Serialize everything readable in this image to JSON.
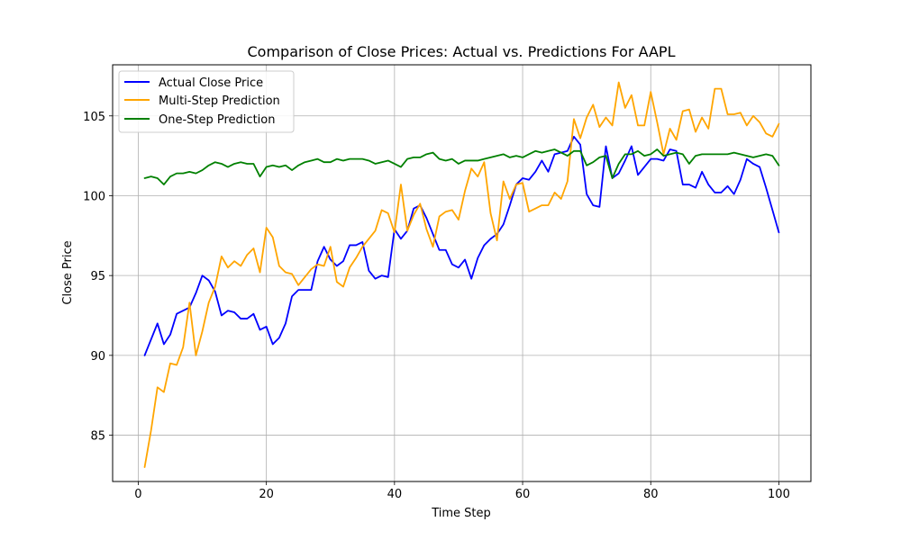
{
  "chart_data": {
    "type": "line",
    "title": "Comparison of Close Prices: Actual vs. Predictions For AAPL",
    "xlabel": "Time Step",
    "ylabel": "Close Price",
    "xlim": [
      -4,
      105
    ],
    "ylim": [
      82.1,
      108.2
    ],
    "xticks": [
      0,
      20,
      40,
      60,
      80,
      100
    ],
    "yticks": [
      85,
      90,
      95,
      100,
      105
    ],
    "grid": true,
    "legend_position": "top-left",
    "x": [
      1,
      2,
      3,
      4,
      5,
      6,
      7,
      8,
      9,
      10,
      11,
      12,
      13,
      14,
      15,
      16,
      17,
      18,
      19,
      20,
      21,
      22,
      23,
      24,
      25,
      26,
      27,
      28,
      29,
      30,
      31,
      32,
      33,
      34,
      35,
      36,
      37,
      38,
      39,
      40,
      41,
      42,
      43,
      44,
      45,
      46,
      47,
      48,
      49,
      50,
      51,
      52,
      53,
      54,
      55,
      56,
      57,
      58,
      59,
      60,
      61,
      62,
      63,
      64,
      65,
      66,
      67,
      68,
      69,
      70,
      71,
      72,
      73,
      74,
      75,
      76,
      77,
      78,
      79,
      80,
      81,
      82,
      83,
      84,
      85,
      86,
      87,
      88,
      89,
      90,
      91,
      92,
      93,
      94,
      95,
      96,
      97,
      98,
      99,
      100
    ],
    "series": [
      {
        "name": "Actual Close Price",
        "color": "#0000ff",
        "values": [
          90.0,
          91.0,
          92.0,
          90.7,
          91.3,
          92.6,
          92.8,
          93.0,
          93.9,
          95.0,
          94.7,
          94.0,
          92.5,
          92.8,
          92.7,
          92.3,
          92.3,
          92.6,
          91.6,
          91.8,
          90.7,
          91.1,
          92.0,
          93.7,
          94.1,
          94.1,
          94.1,
          95.9,
          96.8,
          96.0,
          95.6,
          95.9,
          96.9,
          96.9,
          97.1,
          95.3,
          94.8,
          95.0,
          94.9,
          97.9,
          97.3,
          97.8,
          99.2,
          99.4,
          98.6,
          97.6,
          96.6,
          96.6,
          95.7,
          95.5,
          96.0,
          94.8,
          96.1,
          96.9,
          97.3,
          97.6,
          98.2,
          99.4,
          100.7,
          101.1,
          101.0,
          101.5,
          102.2,
          101.5,
          102.6,
          102.7,
          102.8,
          103.7,
          103.2,
          100.1,
          99.4,
          99.3,
          103.1,
          101.1,
          101.4,
          102.2,
          103.1,
          101.3,
          101.8,
          102.3,
          102.3,
          102.2,
          102.9,
          102.8,
          100.7,
          100.7,
          100.5,
          101.5,
          100.7,
          100.2,
          100.2,
          100.6,
          100.1,
          101.0,
          102.3,
          102.0,
          101.8,
          100.5,
          99.1,
          97.7
        ]
      },
      {
        "name": "Multi-Step Prediction",
        "color": "#ffa500",
        "values": [
          83.0,
          85.3,
          88.0,
          87.7,
          89.5,
          89.4,
          90.5,
          93.3,
          90.0,
          91.5,
          93.3,
          94.3,
          96.2,
          95.5,
          95.9,
          95.6,
          96.3,
          96.7,
          95.2,
          98.0,
          97.4,
          95.6,
          95.2,
          95.1,
          94.4,
          94.9,
          95.4,
          95.7,
          95.6,
          96.8,
          94.6,
          94.3,
          95.5,
          96.1,
          96.8,
          97.3,
          97.8,
          99.1,
          98.9,
          97.7,
          100.7,
          97.8,
          98.8,
          99.5,
          97.9,
          96.8,
          98.7,
          99.0,
          99.1,
          98.5,
          100.3,
          101.7,
          101.2,
          102.1,
          98.9,
          97.2,
          100.9,
          99.8,
          100.7,
          100.8,
          99.0,
          99.2,
          99.4,
          99.4,
          100.2,
          99.8,
          100.9,
          104.8,
          103.6,
          104.9,
          105.7,
          104.3,
          104.9,
          104.4,
          107.1,
          105.5,
          106.3,
          104.4,
          104.4,
          106.5,
          104.6,
          102.6,
          104.2,
          103.5,
          105.3,
          105.4,
          104.0,
          104.9,
          104.2,
          106.7,
          106.7,
          105.1,
          105.1,
          105.2,
          104.4,
          105.0,
          104.6,
          103.9,
          103.7,
          104.5
        ]
      },
      {
        "name": "One-Step Prediction",
        "color": "#008000",
        "values": [
          101.1,
          101.2,
          101.1,
          100.7,
          101.2,
          101.4,
          101.4,
          101.5,
          101.4,
          101.6,
          101.9,
          102.1,
          102.0,
          101.8,
          102.0,
          102.1,
          102.0,
          102.0,
          101.2,
          101.8,
          101.9,
          101.8,
          101.9,
          101.6,
          101.9,
          102.1,
          102.2,
          102.3,
          102.1,
          102.1,
          102.3,
          102.2,
          102.3,
          102.3,
          102.3,
          102.2,
          102.0,
          102.1,
          102.2,
          102.0,
          101.8,
          102.3,
          102.4,
          102.4,
          102.6,
          102.7,
          102.3,
          102.2,
          102.3,
          102.0,
          102.2,
          102.2,
          102.2,
          102.3,
          102.4,
          102.5,
          102.6,
          102.4,
          102.5,
          102.4,
          102.6,
          102.8,
          102.7,
          102.8,
          102.9,
          102.7,
          102.5,
          102.8,
          102.8,
          101.9,
          102.1,
          102.4,
          102.5,
          101.1,
          102.0,
          102.6,
          102.6,
          102.8,
          102.5,
          102.6,
          102.9,
          102.5,
          102.6,
          102.7,
          102.6,
          102.0,
          102.5,
          102.6,
          102.6,
          102.6,
          102.6,
          102.6,
          102.7,
          102.6,
          102.5,
          102.4,
          102.5,
          102.6,
          102.5,
          101.9
        ]
      }
    ]
  }
}
